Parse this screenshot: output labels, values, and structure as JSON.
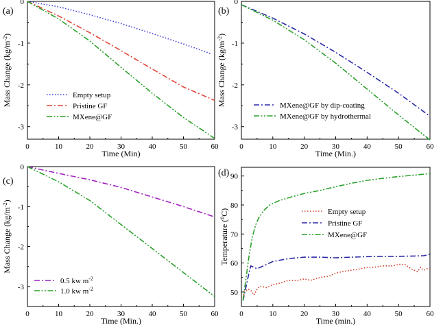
{
  "chart_data": [
    {
      "panel_label": "(a)",
      "type": "line",
      "xlabel": "Time (Min)",
      "ylabel": "Mass Change (kg/m",
      "ylabel_sup": "-2",
      "ylabel_end": ")",
      "xlim": [
        0,
        60
      ],
      "ylim": [
        -3.3,
        0
      ],
      "xticks": [
        "0",
        "10",
        "20",
        "30",
        "40",
        "50",
        "60"
      ],
      "yticks": [
        "0",
        "-1",
        "-2",
        "-3"
      ],
      "legend_position": "bottom-left",
      "series": [
        {
          "name": "Empty setup",
          "color": "#3a3ad6",
          "dash": "dotted",
          "x": [
            0,
            10,
            20,
            30,
            40,
            50,
            59
          ],
          "y": [
            0,
            -0.13,
            -0.32,
            -0.53,
            -0.77,
            -1.02,
            -1.26
          ]
        },
        {
          "name": "Pristine GF",
          "color": "#e0463a",
          "dash": "dashdot",
          "x": [
            0,
            10,
            20,
            30,
            40,
            50,
            60
          ],
          "y": [
            0,
            -0.35,
            -0.75,
            -1.18,
            -1.62,
            -2.05,
            -2.37
          ]
        },
        {
          "name": "MXene@GF",
          "color": "#2aa02a",
          "dash": "dashdotdot",
          "x": [
            0,
            10,
            20,
            30,
            40,
            50,
            60
          ],
          "y": [
            0,
            -0.42,
            -0.95,
            -1.58,
            -2.2,
            -2.78,
            -3.28
          ]
        }
      ]
    },
    {
      "panel_label": "(b)",
      "type": "line",
      "xlabel": "Time (Min.)",
      "ylabel": "Mass Change (kg/m",
      "ylabel_sup": "-2",
      "ylabel_end": ")",
      "xlim": [
        0,
        60
      ],
      "ylim": [
        -3.3,
        0
      ],
      "xticks": [
        "0",
        "10",
        "20",
        "30",
        "40",
        "50",
        "60"
      ],
      "yticks": [
        "0",
        "-1",
        "-2",
        "-3"
      ],
      "legend_position": "bottom-left",
      "series": [
        {
          "name": "MXene@GF by dip-coating",
          "color": "#2a2aa8",
          "dash": "dashdot",
          "x": [
            0,
            10,
            20,
            30,
            40,
            50,
            60
          ],
          "y": [
            -0.08,
            -0.4,
            -0.78,
            -1.22,
            -1.7,
            -2.2,
            -2.75
          ]
        },
        {
          "name": "MXene@GF by hydrothermal",
          "color": "#2aa02a",
          "dash": "dashdotdot",
          "x": [
            0,
            10,
            20,
            30,
            40,
            50,
            60
          ],
          "y": [
            -0.08,
            -0.45,
            -0.92,
            -1.48,
            -2.1,
            -2.72,
            -3.32
          ]
        }
      ]
    },
    {
      "panel_label": "(c)",
      "type": "line",
      "xlabel": "Time (Min.)",
      "ylabel": "Mass Change (kg/m",
      "ylabel_sup": "-2",
      "ylabel_end": ")",
      "xlim": [
        0,
        60
      ],
      "ylim": [
        -3.5,
        0
      ],
      "xticks": [
        "0",
        "10",
        "20",
        "30",
        "40",
        "50",
        "60"
      ],
      "yticks": [
        "0",
        "-1",
        "-2",
        "-3"
      ],
      "legend_position": "bottom-left",
      "series": [
        {
          "name": "0.5 kw m",
          "name_sup": "-2",
          "color": "#a020c0",
          "dash": "dashdot",
          "x": [
            0,
            10,
            20,
            30,
            40,
            50,
            60
          ],
          "y": [
            0,
            -0.17,
            -0.33,
            -0.52,
            -0.76,
            -1.0,
            -1.26
          ]
        },
        {
          "name": "1.0 kw m",
          "name_sup": "-2",
          "color": "#2aa02a",
          "dash": "dashdotdot",
          "x": [
            0,
            10,
            20,
            30,
            40,
            50,
            60
          ],
          "y": [
            0,
            -0.38,
            -0.85,
            -1.45,
            -2.05,
            -2.65,
            -3.25
          ]
        }
      ]
    },
    {
      "panel_label": "(d)",
      "type": "line",
      "xlabel": "Time (min.)",
      "ylabel": "Temperature (",
      "ylabel_sup": "0",
      "ylabel_end": "C)",
      "xlim": [
        0,
        60
      ],
      "ylim": [
        45,
        93
      ],
      "xticks": [
        "0",
        "10",
        "20",
        "30",
        "40",
        "50",
        "60"
      ],
      "yticks": [
        "50",
        "60",
        "70",
        "80",
        "90"
      ],
      "legend_position": "middle-right",
      "series": [
        {
          "name": "Empty setup",
          "color": "#d03a2a",
          "dash": "dotted",
          "x": [
            0.5,
            1,
            2,
            3,
            4,
            5,
            6,
            8,
            10,
            12,
            15,
            18,
            20,
            22,
            25,
            28,
            30,
            32,
            35,
            38,
            40,
            42,
            45,
            48,
            50,
            52,
            54,
            55,
            56,
            57,
            58,
            59,
            60
          ],
          "y": [
            48,
            50,
            51,
            50.5,
            49,
            51,
            52,
            51.5,
            52.5,
            53,
            54,
            54,
            54.5,
            54,
            55,
            55.5,
            56.5,
            57,
            57.5,
            58,
            58.5,
            58.5,
            59,
            59,
            59.5,
            59.5,
            58,
            57.5,
            57,
            58.5,
            57.5,
            58,
            58
          ]
        },
        {
          "name": "Pristine GF",
          "color": "#2a2aa8",
          "dash": "dashdot",
          "x": [
            0.5,
            1.5,
            2.5,
            3,
            4,
            5,
            6,
            8,
            10,
            15,
            20,
            25,
            30,
            35,
            40,
            45,
            50,
            55,
            58,
            60
          ],
          "y": [
            47,
            52,
            57,
            59,
            58.5,
            58,
            58.5,
            59.5,
            60.5,
            61.5,
            62,
            62,
            61.8,
            62,
            62.2,
            62.3,
            62.3,
            62.4,
            62.5,
            63
          ]
        },
        {
          "name": "MXene@GF",
          "color": "#2aa02a",
          "dash": "dashdotdot",
          "x": [
            0.5,
            1.5,
            2.5,
            3.5,
            4.5,
            5.5,
            7,
            9,
            12,
            15,
            20,
            25,
            30,
            35,
            40,
            45,
            50,
            55,
            60
          ],
          "y": [
            47,
            55,
            63,
            69,
            73,
            75.5,
            78,
            80,
            81.5,
            82.5,
            84,
            85,
            86.3,
            87.5,
            88.5,
            89.2,
            89.8,
            90.3,
            90.8
          ]
        }
      ]
    }
  ]
}
